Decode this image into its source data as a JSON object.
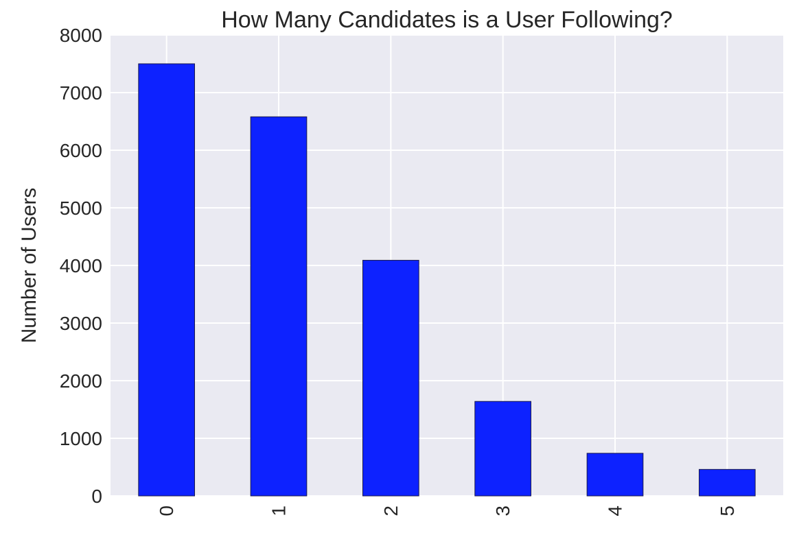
{
  "colors": {
    "plot_background": "#eaeaf2",
    "bar_fill": "#0d22ff",
    "grid": "#ffffff",
    "text": "#262626"
  },
  "chart_data": {
    "type": "bar",
    "title": "How Many Candidates is a User Following?",
    "xlabel": "",
    "ylabel": "Number of Users",
    "categories": [
      "0",
      "1",
      "2",
      "3",
      "4",
      "5"
    ],
    "values": [
      7500,
      6580,
      4090,
      1640,
      740,
      460
    ],
    "ylim": [
      0,
      8000
    ],
    "yticks": [
      0,
      1000,
      2000,
      3000,
      4000,
      5000,
      6000,
      7000,
      8000
    ],
    "xtick_rotation": "vertical",
    "grid": true,
    "legend": "none"
  }
}
